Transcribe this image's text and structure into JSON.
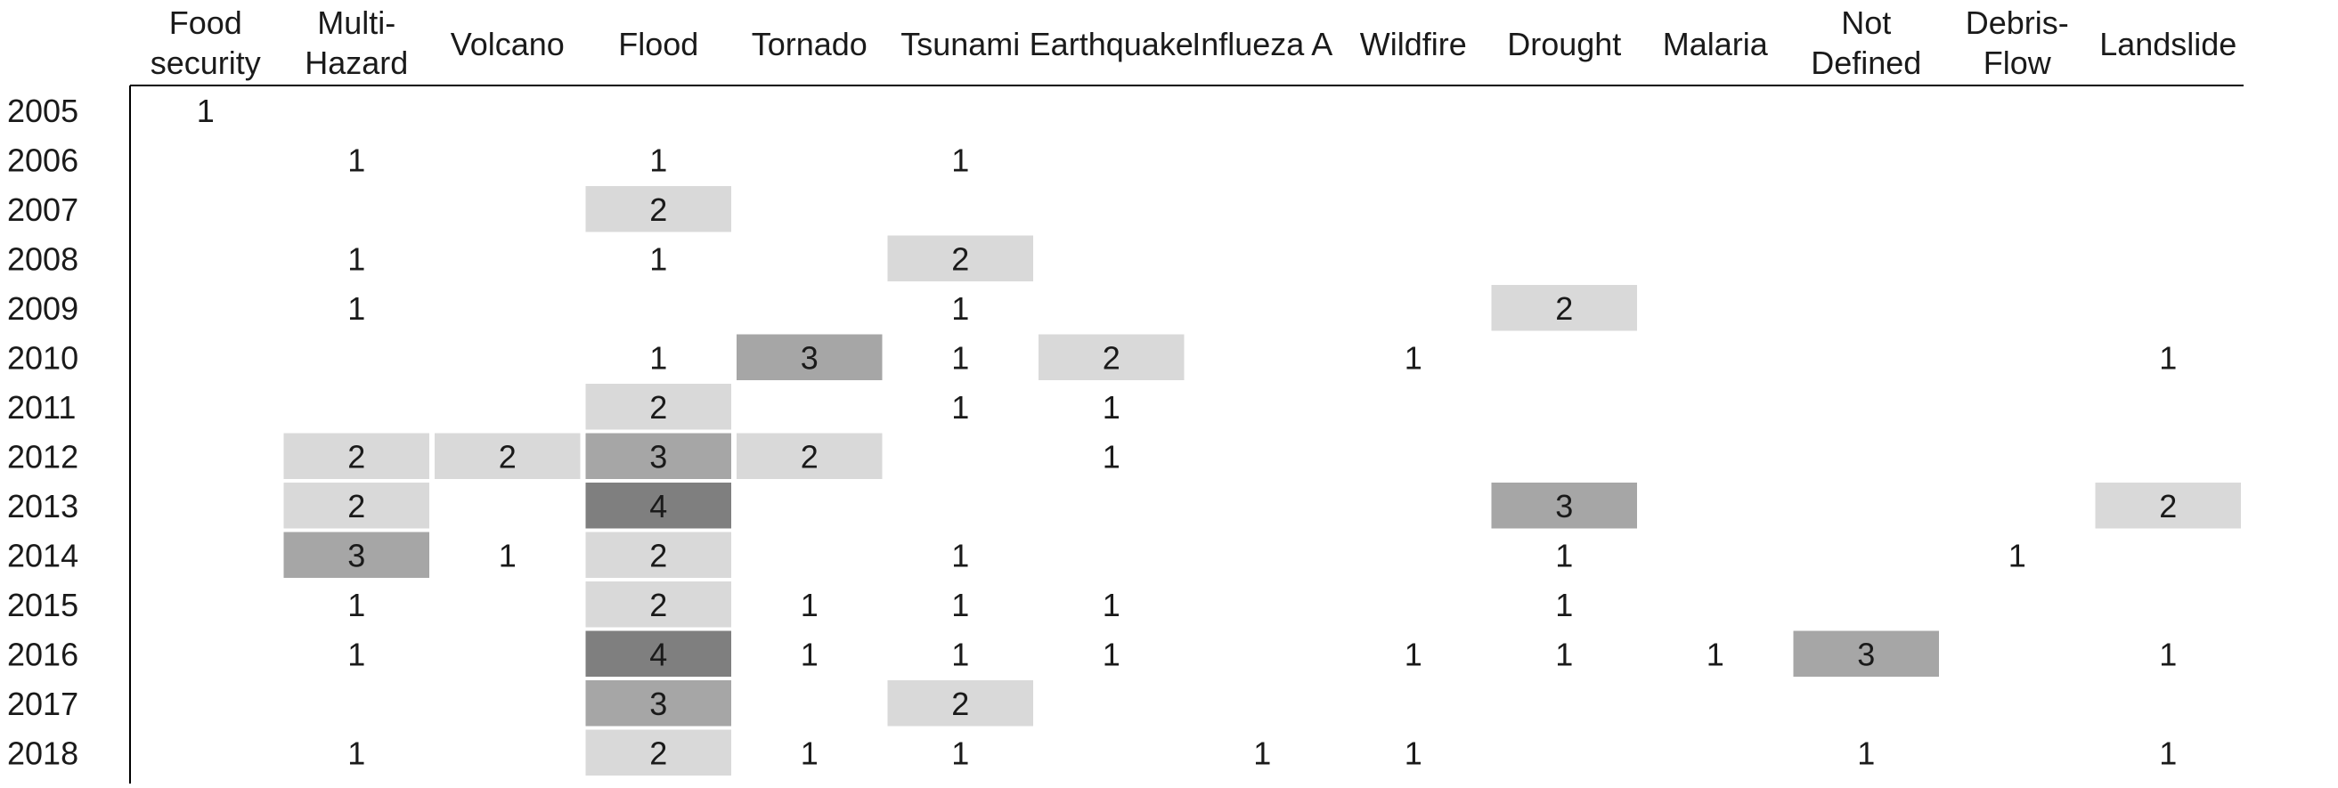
{
  "chart_data": {
    "type": "heatmap",
    "columns": [
      "Food security",
      "Multi-Hazard",
      "Volcano",
      "Flood",
      "Tornado",
      "Tsunami",
      "Earthquake",
      "Influeza A",
      "Wildfire",
      "Drought",
      "Malaria",
      "Not Defined",
      "Debris-Flow",
      "Landslide"
    ],
    "column_header_lines": [
      [
        "Food",
        "security"
      ],
      [
        "Multi-",
        "Hazard"
      ],
      [
        "Volcano"
      ],
      [
        "Flood"
      ],
      [
        "Tornado"
      ],
      [
        "Tsunami"
      ],
      [
        "Earthquake"
      ],
      [
        "Influeza A"
      ],
      [
        "Wildfire"
      ],
      [
        "Drought"
      ],
      [
        "Malaria"
      ],
      [
        "Not",
        "Defined"
      ],
      [
        "Debris-",
        "Flow"
      ],
      [
        "Landslide"
      ]
    ],
    "rows": [
      "2005",
      "2006",
      "2007",
      "2008",
      "2009",
      "2010",
      "2011",
      "2012",
      "2013",
      "2014",
      "2015",
      "2016",
      "2017",
      "2018"
    ],
    "values": [
      [
        1,
        null,
        null,
        null,
        null,
        null,
        null,
        null,
        null,
        null,
        null,
        null,
        null,
        null
      ],
      [
        null,
        1,
        null,
        1,
        null,
        1,
        null,
        null,
        null,
        null,
        null,
        null,
        null,
        null
      ],
      [
        null,
        null,
        null,
        2,
        null,
        null,
        null,
        null,
        null,
        null,
        null,
        null,
        null,
        null
      ],
      [
        null,
        1,
        null,
        1,
        null,
        2,
        null,
        null,
        null,
        null,
        null,
        null,
        null,
        null
      ],
      [
        null,
        1,
        null,
        null,
        null,
        1,
        null,
        null,
        null,
        2,
        null,
        null,
        null,
        null
      ],
      [
        null,
        null,
        null,
        1,
        3,
        1,
        2,
        null,
        1,
        null,
        null,
        null,
        null,
        1
      ],
      [
        null,
        null,
        null,
        2,
        null,
        1,
        1,
        null,
        null,
        null,
        null,
        null,
        null,
        null
      ],
      [
        null,
        2,
        2,
        3,
        2,
        null,
        1,
        null,
        null,
        null,
        null,
        null,
        null,
        null
      ],
      [
        null,
        2,
        null,
        4,
        null,
        null,
        null,
        null,
        null,
        3,
        null,
        null,
        null,
        2
      ],
      [
        null,
        3,
        1,
        2,
        null,
        1,
        null,
        null,
        null,
        1,
        null,
        null,
        1,
        null
      ],
      [
        null,
        1,
        null,
        2,
        1,
        1,
        1,
        null,
        null,
        1,
        null,
        null,
        null,
        null
      ],
      [
        null,
        1,
        null,
        4,
        1,
        1,
        1,
        null,
        1,
        1,
        1,
        3,
        null,
        1
      ],
      [
        null,
        null,
        null,
        3,
        null,
        2,
        null,
        null,
        null,
        null,
        null,
        null,
        null,
        null
      ],
      [
        null,
        1,
        null,
        2,
        1,
        1,
        null,
        1,
        1,
        null,
        null,
        1,
        null,
        1
      ]
    ],
    "color_scale": {
      "1": "#ffffff",
      "2": "#d9d9d9",
      "3": "#a6a6a6",
      "4": "#7f7f7f"
    },
    "text_color": "#1a1a1a",
    "axis_line_color": "#000000"
  }
}
